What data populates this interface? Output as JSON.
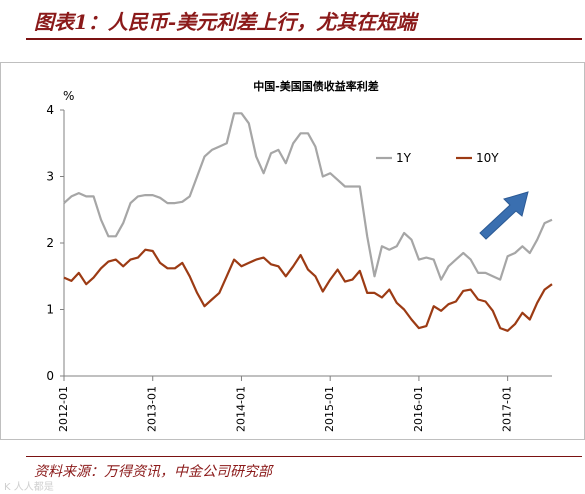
{
  "header": {
    "title": "图表1：人民币-美元利差上行，尤其在短端"
  },
  "footer": {
    "source": "资料来源：万得资讯，中金公司研究部",
    "watermark": "K 人人都是"
  },
  "chart_data": {
    "type": "line",
    "title": "中国-美国国债收益率利差",
    "ylabel": "%",
    "ylim": [
      0,
      4
    ],
    "yticks": [
      0,
      1,
      2,
      3,
      4
    ],
    "x_range": [
      "2012-01",
      "2017-07"
    ],
    "xticks": [
      "2012-01",
      "2013-01",
      "2014-01",
      "2015-01",
      "2016-01",
      "2017-01"
    ],
    "grid": false,
    "legend_position": "upper-right",
    "annotation": "upward-arrow",
    "colors": {
      "1Y": "#a6a6a6",
      "10Y": "#9c3b14",
      "arrow": "#3a6fb0"
    },
    "x": [
      "2012-01",
      "2012-02",
      "2012-03",
      "2012-04",
      "2012-05",
      "2012-06",
      "2012-07",
      "2012-08",
      "2012-09",
      "2012-10",
      "2012-11",
      "2012-12",
      "2013-01",
      "2013-02",
      "2013-03",
      "2013-04",
      "2013-05",
      "2013-06",
      "2013-07",
      "2013-08",
      "2013-09",
      "2013-10",
      "2013-11",
      "2013-12",
      "2014-01",
      "2014-02",
      "2014-03",
      "2014-04",
      "2014-05",
      "2014-06",
      "2014-07",
      "2014-08",
      "2014-09",
      "2014-10",
      "2014-11",
      "2014-12",
      "2015-01",
      "2015-02",
      "2015-03",
      "2015-04",
      "2015-05",
      "2015-06",
      "2015-07",
      "2015-08",
      "2015-09",
      "2015-10",
      "2015-11",
      "2015-12",
      "2016-01",
      "2016-02",
      "2016-03",
      "2016-04",
      "2016-05",
      "2016-06",
      "2016-07",
      "2016-08",
      "2016-09",
      "2016-10",
      "2016-11",
      "2016-12",
      "2017-01",
      "2017-02",
      "2017-03",
      "2017-04",
      "2017-05",
      "2017-06",
      "2017-07"
    ],
    "series": [
      {
        "name": "1Y",
        "values": [
          2.6,
          2.7,
          2.75,
          2.7,
          2.7,
          2.35,
          2.1,
          2.1,
          2.3,
          2.6,
          2.7,
          2.72,
          2.72,
          2.68,
          2.6,
          2.6,
          2.62,
          2.7,
          3.0,
          3.3,
          3.4,
          3.45,
          3.5,
          3.95,
          3.95,
          3.8,
          3.3,
          3.05,
          3.35,
          3.4,
          3.2,
          3.5,
          3.65,
          3.65,
          3.45,
          3.0,
          3.05,
          2.95,
          2.85,
          2.85,
          2.85,
          2.1,
          1.5,
          1.95,
          1.9,
          1.95,
          2.15,
          2.05,
          1.75,
          1.78,
          1.75,
          1.45,
          1.65,
          1.75,
          1.85,
          1.75,
          1.55,
          1.55,
          1.5,
          1.45,
          1.8,
          1.85,
          1.95,
          1.85,
          2.05,
          2.3,
          2.35
        ]
      },
      {
        "name": "10Y",
        "values": [
          1.48,
          1.43,
          1.55,
          1.38,
          1.48,
          1.62,
          1.72,
          1.75,
          1.65,
          1.75,
          1.78,
          1.9,
          1.88,
          1.7,
          1.62,
          1.62,
          1.7,
          1.5,
          1.25,
          1.05,
          1.15,
          1.25,
          1.5,
          1.75,
          1.65,
          1.7,
          1.75,
          1.78,
          1.68,
          1.65,
          1.5,
          1.65,
          1.82,
          1.6,
          1.5,
          1.27,
          1.45,
          1.6,
          1.42,
          1.45,
          1.58,
          1.25,
          1.25,
          1.18,
          1.3,
          1.1,
          1.0,
          0.85,
          0.72,
          0.75,
          1.05,
          0.98,
          1.08,
          1.12,
          1.28,
          1.3,
          1.15,
          1.12,
          0.98,
          0.72,
          0.68,
          0.78,
          0.95,
          0.85,
          1.1,
          1.3,
          1.38
        ]
      }
    ]
  }
}
